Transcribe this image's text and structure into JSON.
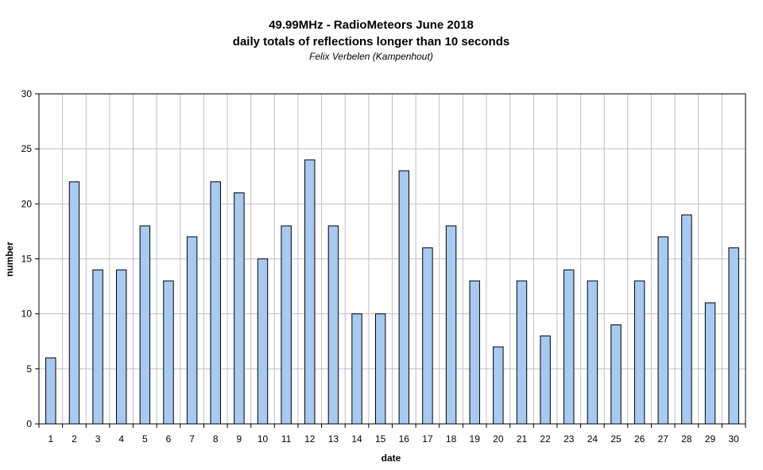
{
  "chart_data": {
    "type": "bar",
    "title": "49.99MHz - RadioMeteors June 2018",
    "subtitle": "daily totals of reflections longer than 10 seconds",
    "author": "Felix Verbelen (Kampenhout)",
    "xlabel": "date",
    "ylabel": "number",
    "ylim": [
      0,
      30
    ],
    "yticks": [
      0,
      5,
      10,
      15,
      20,
      25,
      30
    ],
    "grid": true,
    "legend": "none",
    "bar_color": "#a6caf0",
    "categories": [
      "1",
      "2",
      "3",
      "4",
      "5",
      "6",
      "7",
      "8",
      "9",
      "10",
      "11",
      "12",
      "13",
      "14",
      "15",
      "16",
      "17",
      "18",
      "19",
      "20",
      "21",
      "22",
      "23",
      "24",
      "25",
      "26",
      "27",
      "28",
      "29",
      "30"
    ],
    "values": [
      6,
      22,
      14,
      14,
      18,
      13,
      17,
      22,
      21,
      15,
      18,
      24,
      18,
      10,
      10,
      23,
      16,
      18,
      13,
      7,
      13,
      8,
      14,
      13,
      9,
      13,
      17,
      19,
      11,
      16
    ]
  }
}
